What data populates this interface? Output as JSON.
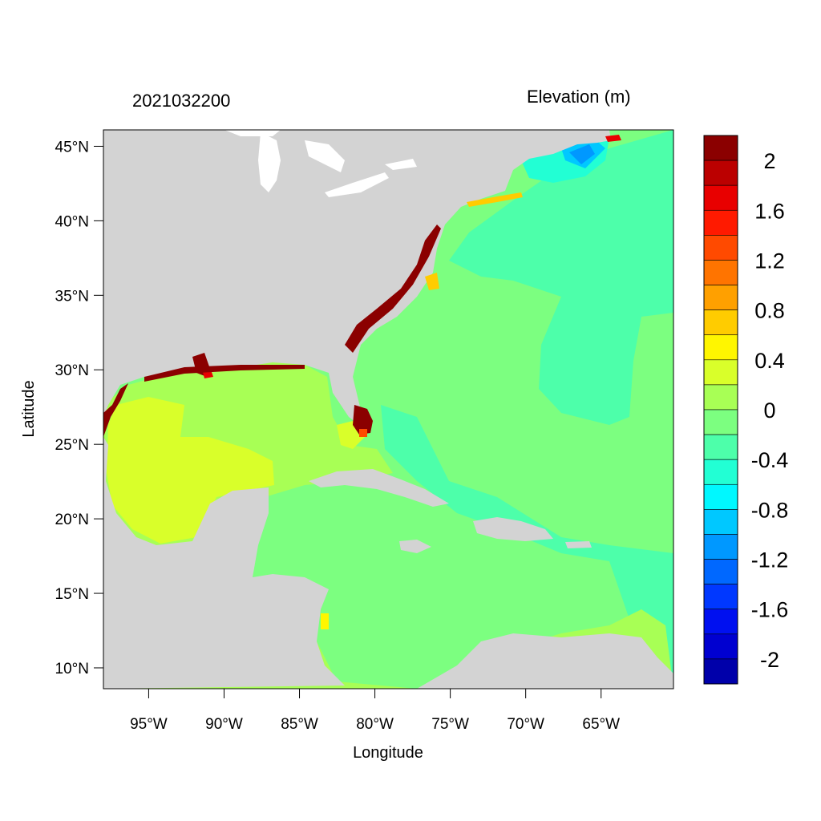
{
  "header": {
    "left_title": "2021032200",
    "right_title": "Elevation (m)"
  },
  "axes": {
    "xlabel": "Longitude",
    "ylabel": "Latitude",
    "x_ticks": [
      {
        "value": -95,
        "label": "95°W"
      },
      {
        "value": -90,
        "label": "90°W"
      },
      {
        "value": -85,
        "label": "85°W"
      },
      {
        "value": -80,
        "label": "80°W"
      },
      {
        "value": -75,
        "label": "75°W"
      },
      {
        "value": -70,
        "label": "70°W"
      },
      {
        "value": -65,
        "label": "65°W"
      }
    ],
    "y_ticks": [
      {
        "value": 45,
        "label": "45°N"
      },
      {
        "value": 40,
        "label": "40°N"
      },
      {
        "value": 35,
        "label": "35°N"
      },
      {
        "value": 30,
        "label": "30°N"
      },
      {
        "value": 25,
        "label": "25°N"
      },
      {
        "value": 20,
        "label": "20°N"
      },
      {
        "value": 15,
        "label": "15°N"
      },
      {
        "value": 10,
        "label": "10°N"
      }
    ],
    "xlim": [
      -98,
      -60.2
    ],
    "ylim": [
      8.6,
      46.1
    ]
  },
  "colorbar": {
    "labels": [
      "2",
      "1.6",
      "1.2",
      "0.8",
      "0.4",
      "0",
      "-0.4",
      "-0.8",
      "-1.2",
      "-1.6",
      "-2"
    ],
    "colors": [
      "#8b0000",
      "#bb0000",
      "#e80000",
      "#ff1a00",
      "#ff4a00",
      "#ff7400",
      "#ffa000",
      "#ffcc00",
      "#fff600",
      "#d9ff2a",
      "#a8ff55",
      "#7cff80",
      "#4dffaa",
      "#22ffd4",
      "#00f8ff",
      "#00c8ff",
      "#0098ff",
      "#0068ff",
      "#0038ff",
      "#0010f0",
      "#0000d0",
      "#0000aa"
    ]
  },
  "colors": {
    "land": "#d3d3d3",
    "lakes": "#ffffff",
    "water_zero": "#7cff80",
    "water_neg": "#4dffaa",
    "gulf": "#a8ff55",
    "gulf_high": "#d9ff2a",
    "surge_high": "#8b0000"
  }
}
